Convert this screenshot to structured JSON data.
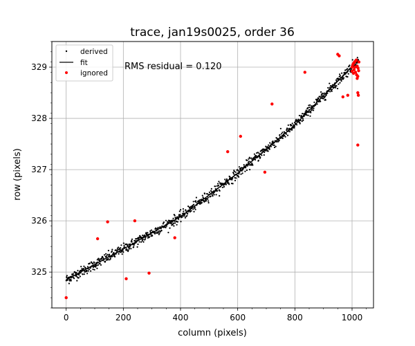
{
  "chart_data": {
    "type": "scatter",
    "title": "trace, jan19s0025, order 36",
    "xlabel": "column (pixels)",
    "ylabel": "row (pixels)",
    "xlim": [
      -50,
      1075
    ],
    "ylim": [
      324.3,
      329.5
    ],
    "xticks": [
      0,
      200,
      400,
      600,
      800,
      1000
    ],
    "yticks": [
      325,
      326,
      327,
      328,
      329
    ],
    "grid": true,
    "legend_position": "top-left",
    "annotation": "RMS residual = 0.120",
    "fit_line": {
      "name": "fit",
      "x": [
        0,
        200,
        400,
        600,
        800,
        1024
      ],
      "y": [
        324.85,
        325.45,
        326.08,
        326.93,
        327.87,
        329.15
      ],
      "color": "#000000"
    },
    "derived": {
      "name": "derived",
      "color": "#000000",
      "count": 1000,
      "x_range": [
        0,
        1020
      ],
      "scatter": 0.05
    },
    "ignored": {
      "name": "ignored",
      "color": "#ff0000",
      "x": [
        0,
        110,
        145,
        210,
        240,
        290,
        380,
        565,
        610,
        695,
        720,
        835,
        950,
        955,
        968,
        985,
        1000,
        1003,
        1006,
        1009,
        1012,
        1015,
        1018,
        1021,
        1007,
        1012,
        1016,
        1020,
        1023,
        1018,
        1020,
        1022,
        1010,
        1000,
        1005,
        1020,
        1024
      ],
      "y": [
        324.5,
        325.65,
        325.98,
        324.87,
        326.0,
        324.98,
        325.67,
        327.35,
        327.65,
        326.95,
        328.28,
        328.9,
        329.25,
        329.22,
        328.42,
        328.45,
        329.0,
        329.05,
        329.08,
        329.1,
        329.12,
        329.14,
        329.02,
        328.98,
        328.95,
        328.9,
        328.85,
        328.82,
        328.93,
        328.78,
        328.5,
        328.45,
        329.0,
        328.92,
        328.88,
        327.48,
        329.1
      ]
    }
  },
  "legend": {
    "derived_label": "derived",
    "fit_label": "fit",
    "ignored_label": "ignored"
  }
}
